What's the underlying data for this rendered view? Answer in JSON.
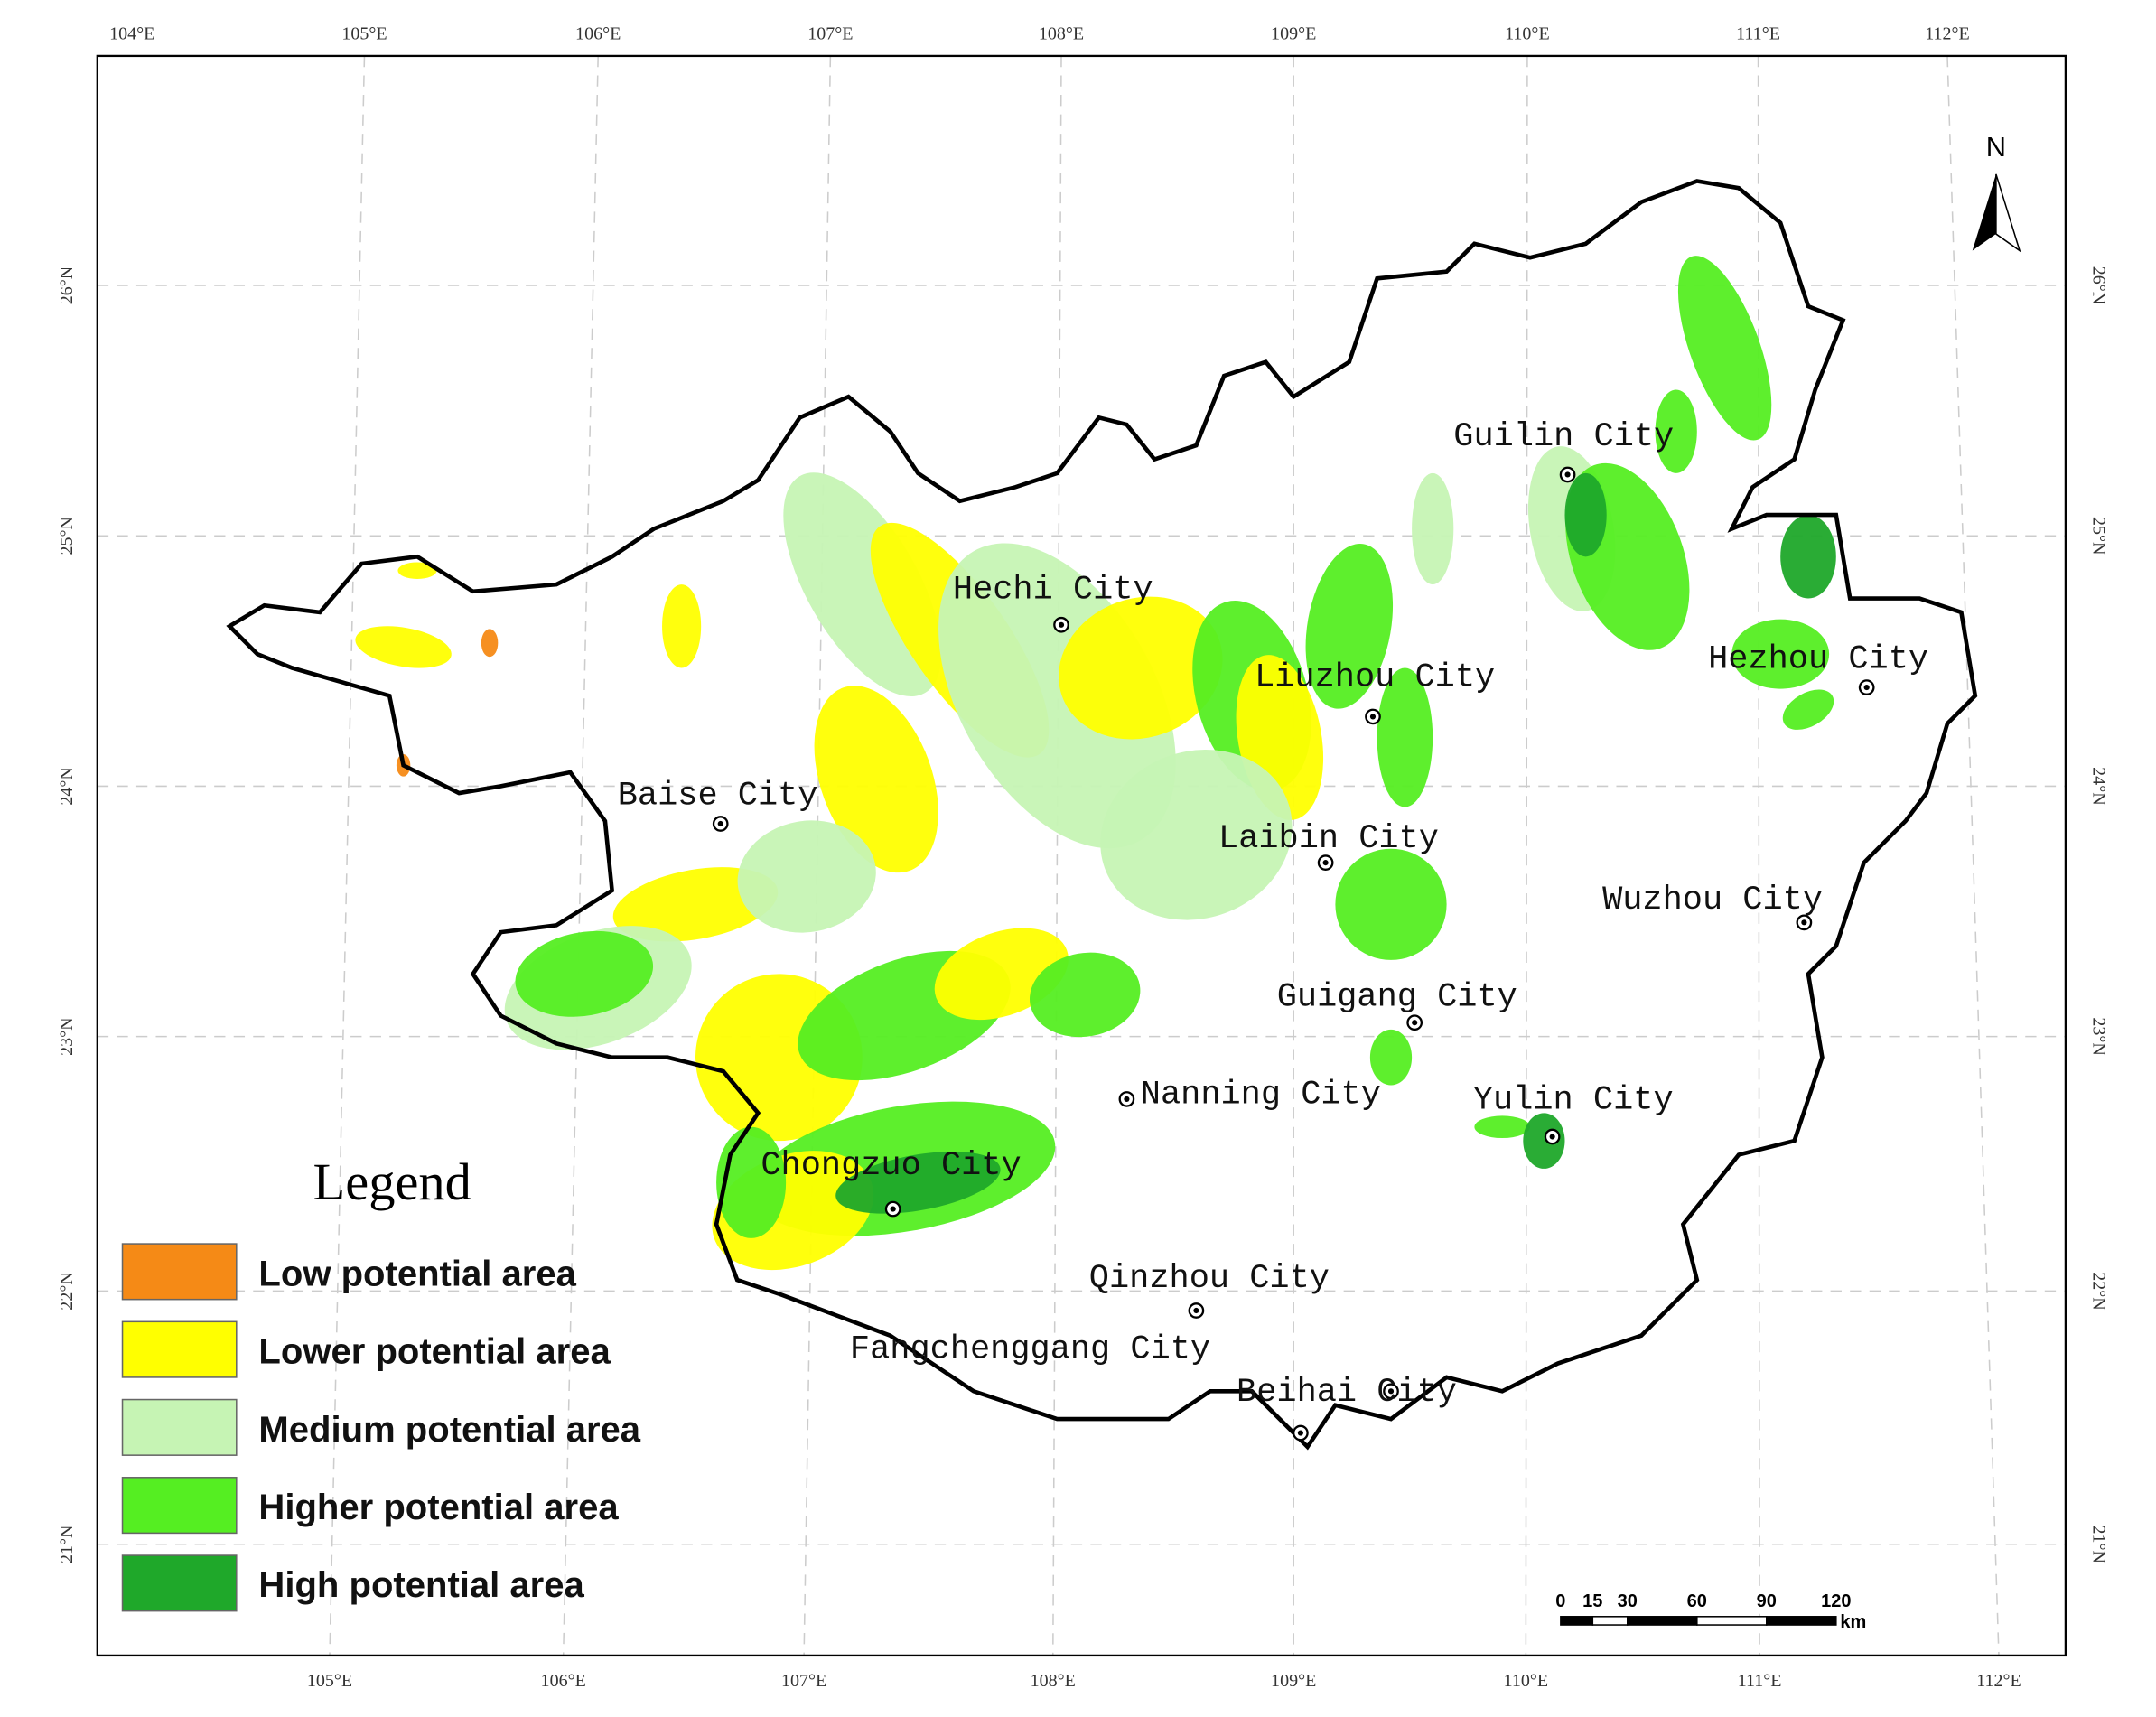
{
  "axes": {
    "top": [
      "104°E",
      "105°E",
      "106°E",
      "107°E",
      "108°E",
      "109°E",
      "110°E",
      "111°E",
      "112°E"
    ],
    "bottom": [
      "105°E",
      "106°E",
      "107°E",
      "108°E",
      "109°E",
      "110°E",
      "111°E",
      "112°E"
    ],
    "left": [
      "26°N",
      "25°N",
      "24°N",
      "23°N",
      "22°N",
      "21°N"
    ],
    "right": [
      "26°N",
      "25°N",
      "24°N",
      "23°N",
      "22°N",
      "21°N"
    ]
  },
  "cities": [
    "Guilin City",
    "Hechi City",
    "Liuzhou City",
    "Hezhou City",
    "Baise City",
    "Laibin City",
    "Wuzhou City",
    "Guigang City",
    "Nanning City",
    "Yulin City",
    "Chongzuo City",
    "Qinzhou City",
    "Fangchenggang City",
    "Beihai City"
  ],
  "legend": {
    "title": "Legend",
    "items": [
      {
        "label": "Low potential area",
        "color": "#f58a16"
      },
      {
        "label": "Lower potential area",
        "color": "#ffff00"
      },
      {
        "label": "Medium potential area",
        "color": "#c6f4b4"
      },
      {
        "label": "Higher potential area",
        "color": "#55ee22"
      },
      {
        "label": "High potential area",
        "color": "#1fa82a"
      }
    ]
  },
  "scale_bar": {
    "labels": [
      "0",
      "15",
      "30",
      "60",
      "90",
      "120"
    ],
    "unit": "km"
  },
  "north": "N"
}
